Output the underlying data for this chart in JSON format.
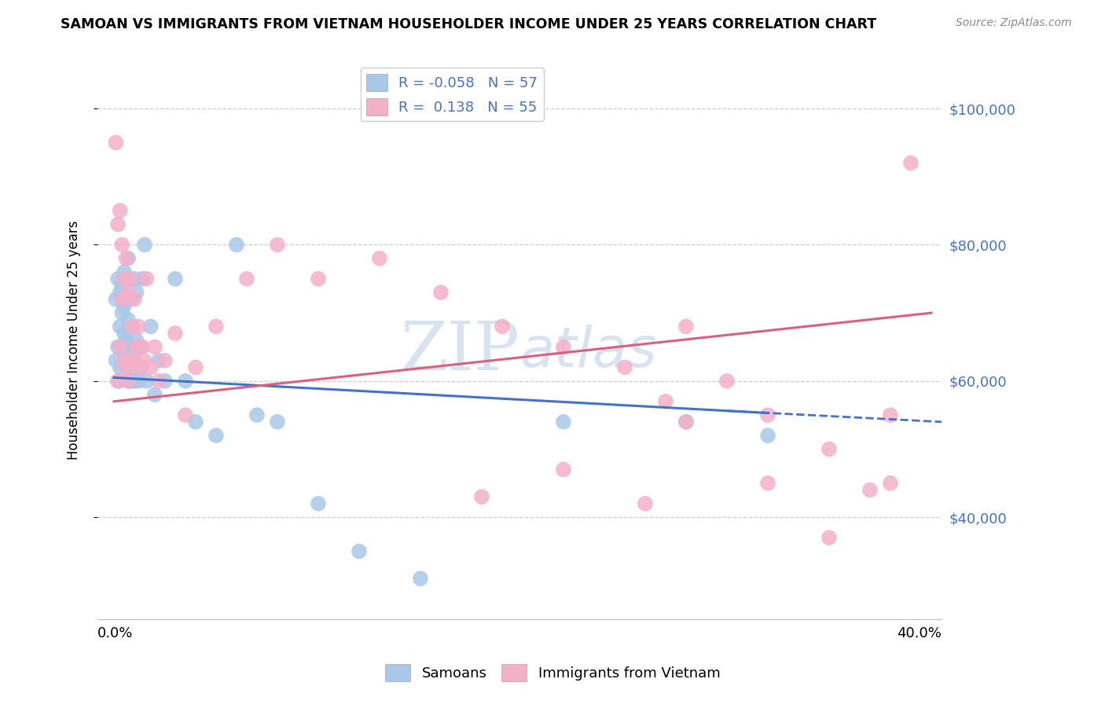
{
  "title": "SAMOAN VS IMMIGRANTS FROM VIETNAM HOUSEHOLDER INCOME UNDER 25 YEARS CORRELATION CHART",
  "source": "Source: ZipAtlas.com",
  "ylabel": "Householder Income Under 25 years",
  "y_ticks": [
    40000,
    60000,
    80000,
    100000
  ],
  "y_tick_labels": [
    "$40,000",
    "$60,000",
    "$80,000",
    "$100,000"
  ],
  "samoans_color": "#a8c8e8",
  "vietnam_color": "#f4b0c8",
  "samoans_line_color": "#4472c4",
  "vietnam_line_color": "#d96080",
  "background_color": "#ffffff",
  "grid_color": "#cccccc",
  "watermark_color": "#c8d8ea",
  "right_label_color": "#4472c4",
  "sam_x": [
    0.001,
    0.001,
    0.002,
    0.002,
    0.002,
    0.003,
    0.003,
    0.003,
    0.004,
    0.004,
    0.004,
    0.005,
    0.005,
    0.005,
    0.005,
    0.006,
    0.006,
    0.006,
    0.007,
    0.007,
    0.007,
    0.007,
    0.008,
    0.008,
    0.008,
    0.009,
    0.009,
    0.009,
    0.01,
    0.01,
    0.01,
    0.011,
    0.011,
    0.012,
    0.012,
    0.013,
    0.013,
    0.014,
    0.015,
    0.016,
    0.018,
    0.02,
    0.022,
    0.025,
    0.03,
    0.035,
    0.04,
    0.05,
    0.06,
    0.07,
    0.08,
    0.1,
    0.12,
    0.15,
    0.22,
    0.28,
    0.32
  ],
  "sam_y": [
    63000,
    72000,
    75000,
    60000,
    65000,
    68000,
    73000,
    62000,
    65000,
    70000,
    74000,
    67000,
    71000,
    64000,
    76000,
    72000,
    66000,
    62000,
    69000,
    64000,
    60000,
    78000,
    72000,
    65000,
    60000,
    61000,
    68000,
    63000,
    75000,
    63000,
    60000,
    73000,
    66000,
    65000,
    60000,
    62000,
    65000,
    75000,
    80000,
    60000,
    68000,
    58000,
    63000,
    60000,
    75000,
    60000,
    54000,
    52000,
    80000,
    55000,
    54000,
    42000,
    35000,
    31000,
    54000,
    54000,
    52000
  ],
  "viet_x": [
    0.001,
    0.002,
    0.002,
    0.003,
    0.003,
    0.004,
    0.004,
    0.005,
    0.005,
    0.006,
    0.006,
    0.007,
    0.007,
    0.008,
    0.008,
    0.009,
    0.01,
    0.01,
    0.011,
    0.012,
    0.013,
    0.014,
    0.015,
    0.016,
    0.018,
    0.02,
    0.022,
    0.025,
    0.03,
    0.035,
    0.04,
    0.05,
    0.065,
    0.08,
    0.1,
    0.13,
    0.16,
    0.19,
    0.22,
    0.25,
    0.27,
    0.28,
    0.3,
    0.32,
    0.35,
    0.37,
    0.38,
    0.39,
    0.22,
    0.28,
    0.32,
    0.18,
    0.26,
    0.35,
    0.38
  ],
  "viet_y": [
    95000,
    83000,
    60000,
    85000,
    65000,
    80000,
    72000,
    75000,
    63000,
    78000,
    62000,
    73000,
    60000,
    75000,
    63000,
    68000,
    72000,
    63000,
    65000,
    68000,
    62000,
    65000,
    63000,
    75000,
    62000,
    65000,
    60000,
    63000,
    67000,
    55000,
    62000,
    68000,
    75000,
    80000,
    75000,
    78000,
    73000,
    68000,
    65000,
    62000,
    57000,
    68000,
    60000,
    55000,
    50000,
    44000,
    55000,
    92000,
    47000,
    54000,
    45000,
    43000,
    42000,
    37000,
    45000
  ]
}
